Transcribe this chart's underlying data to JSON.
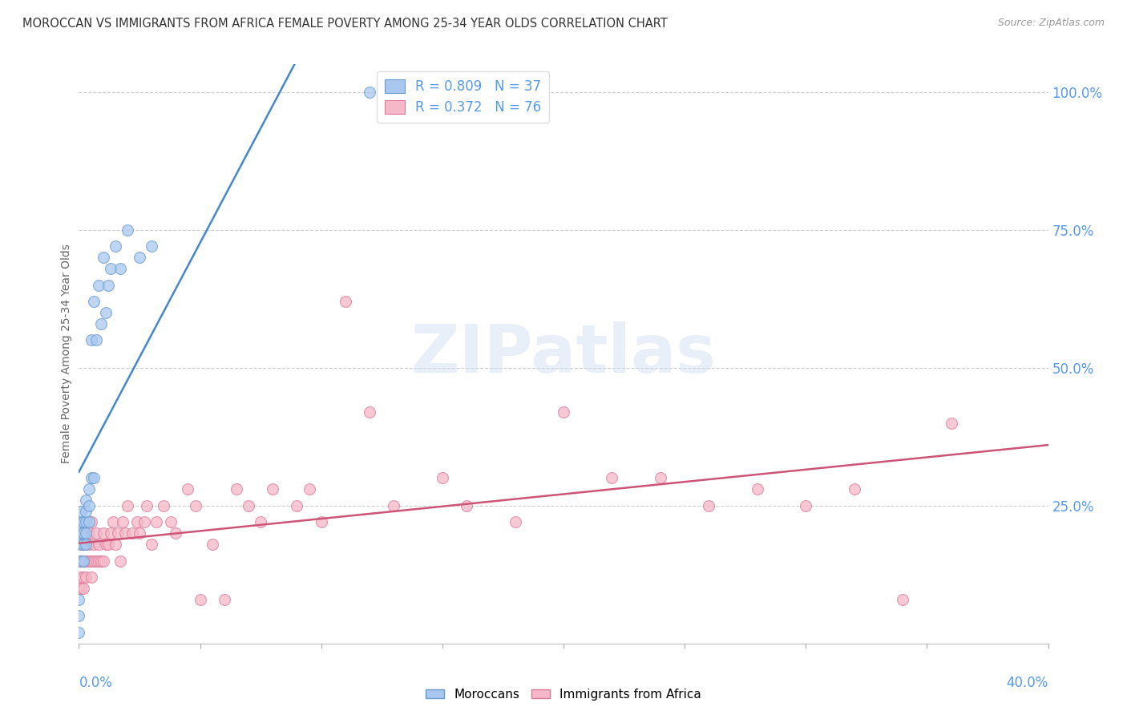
{
  "title": "MOROCCAN VS IMMIGRANTS FROM AFRICA FEMALE POVERTY AMONG 25-34 YEAR OLDS CORRELATION CHART",
  "source": "Source: ZipAtlas.com",
  "ylabel": "Female Poverty Among 25-34 Year Olds",
  "legend_moroccan": "Moroccans",
  "legend_africa": "Immigrants from Africa",
  "R_moroccan": 0.809,
  "N_moroccan": 37,
  "R_africa": 0.372,
  "N_africa": 76,
  "color_moroccan_fill": "#a8c8f0",
  "color_moroccan_edge": "#6699cc",
  "color_africa_fill": "#f5b8c8",
  "color_africa_edge": "#dd7799",
  "color_line_moroccan": "#4488cc",
  "color_line_africa": "#cc5577",
  "color_title": "#444444",
  "color_axis_labels": "#5599ee",
  "color_source": "#999999",
  "background_color": "#ffffff",
  "xlim": [
    0.0,
    0.4
  ],
  "ylim": [
    0.0,
    1.05
  ],
  "yticks": [
    0.25,
    0.5,
    0.75,
    1.0
  ],
  "yticklabels": [
    "25.0%",
    "50.0%",
    "75.0%",
    "100.0%"
  ],
  "watermark": "ZIPatlas",
  "moroccan_x": [
    0.0,
    0.0,
    0.0,
    0.001,
    0.001,
    0.001,
    0.001,
    0.001,
    0.002,
    0.002,
    0.002,
    0.002,
    0.003,
    0.003,
    0.003,
    0.003,
    0.003,
    0.004,
    0.004,
    0.004,
    0.005,
    0.005,
    0.006,
    0.006,
    0.007,
    0.008,
    0.009,
    0.01,
    0.011,
    0.012,
    0.013,
    0.015,
    0.017,
    0.02,
    0.025,
    0.03,
    0.12
  ],
  "moroccan_y": [
    0.02,
    0.05,
    0.08,
    0.15,
    0.18,
    0.2,
    0.22,
    0.24,
    0.15,
    0.18,
    0.2,
    0.22,
    0.18,
    0.2,
    0.22,
    0.24,
    0.26,
    0.22,
    0.25,
    0.28,
    0.3,
    0.55,
    0.3,
    0.62,
    0.55,
    0.65,
    0.58,
    0.7,
    0.6,
    0.65,
    0.68,
    0.72,
    0.68,
    0.75,
    0.7,
    0.72,
    1.0
  ],
  "africa_x": [
    0.0,
    0.0,
    0.001,
    0.001,
    0.001,
    0.001,
    0.002,
    0.002,
    0.002,
    0.002,
    0.002,
    0.003,
    0.003,
    0.003,
    0.004,
    0.004,
    0.004,
    0.005,
    0.005,
    0.005,
    0.006,
    0.006,
    0.007,
    0.007,
    0.008,
    0.008,
    0.009,
    0.01,
    0.01,
    0.011,
    0.012,
    0.013,
    0.014,
    0.015,
    0.016,
    0.017,
    0.018,
    0.019,
    0.02,
    0.022,
    0.024,
    0.025,
    0.027,
    0.028,
    0.03,
    0.032,
    0.035,
    0.038,
    0.04,
    0.045,
    0.048,
    0.05,
    0.055,
    0.06,
    0.065,
    0.07,
    0.075,
    0.08,
    0.09,
    0.095,
    0.1,
    0.11,
    0.12,
    0.13,
    0.15,
    0.16,
    0.18,
    0.2,
    0.22,
    0.24,
    0.26,
    0.28,
    0.3,
    0.32,
    0.34,
    0.36
  ],
  "africa_y": [
    0.1,
    0.15,
    0.1,
    0.12,
    0.15,
    0.18,
    0.1,
    0.12,
    0.15,
    0.18,
    0.2,
    0.12,
    0.15,
    0.18,
    0.15,
    0.18,
    0.2,
    0.12,
    0.15,
    0.22,
    0.15,
    0.18,
    0.15,
    0.2,
    0.15,
    0.18,
    0.15,
    0.15,
    0.2,
    0.18,
    0.18,
    0.2,
    0.22,
    0.18,
    0.2,
    0.15,
    0.22,
    0.2,
    0.25,
    0.2,
    0.22,
    0.2,
    0.22,
    0.25,
    0.18,
    0.22,
    0.25,
    0.22,
    0.2,
    0.28,
    0.25,
    0.08,
    0.18,
    0.08,
    0.28,
    0.25,
    0.22,
    0.28,
    0.25,
    0.28,
    0.22,
    0.62,
    0.42,
    0.25,
    0.3,
    0.25,
    0.22,
    0.42,
    0.3,
    0.3,
    0.25,
    0.28,
    0.25,
    0.28,
    0.08,
    0.4
  ]
}
